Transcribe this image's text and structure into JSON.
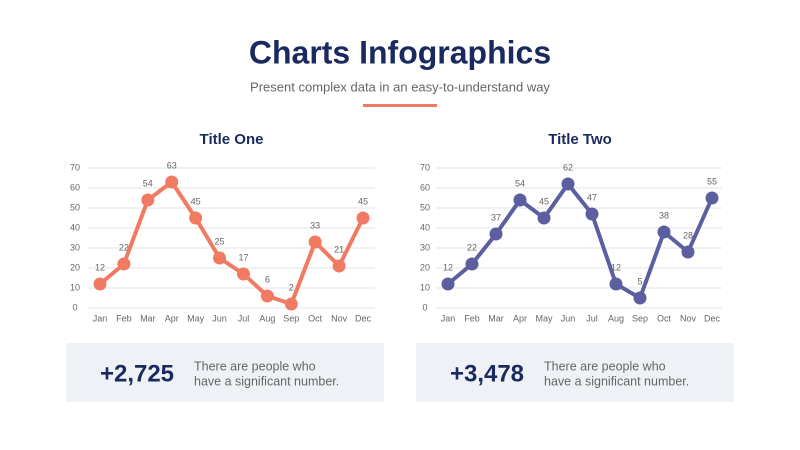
{
  "header": {
    "title": "Charts Infographics",
    "subtitle": "Present complex data in an easy-to-understand way"
  },
  "chart_data": [
    {
      "type": "line",
      "title": "Title One",
      "categories": [
        "Jan",
        "Feb",
        "Mar",
        "Apr",
        "May",
        "Jun",
        "Jul",
        "Aug",
        "Sep",
        "Oct",
        "Nov",
        "Dec"
      ],
      "values": [
        12,
        22,
        54,
        63,
        45,
        25,
        17,
        6,
        2,
        33,
        21,
        45
      ],
      "color": "#f07b62",
      "ylim": [
        0,
        70
      ],
      "yticks": [
        0,
        10,
        20,
        30,
        40,
        50,
        60,
        70
      ],
      "grid": true
    },
    {
      "type": "line",
      "title": "Title Two",
      "categories": [
        "Jan",
        "Feb",
        "Mar",
        "Apr",
        "May",
        "Jun",
        "Jul",
        "Aug",
        "Sep",
        "Oct",
        "Nov",
        "Dec"
      ],
      "values": [
        12,
        22,
        37,
        54,
        45,
        62,
        47,
        12,
        5,
        38,
        28,
        55
      ],
      "color": "#5b5fa0",
      "ylim": [
        0,
        70
      ],
      "yticks": [
        0,
        10,
        20,
        30,
        40,
        50,
        60,
        70
      ],
      "grid": true
    }
  ],
  "stats": [
    {
      "value": "+2,725",
      "text": [
        "There are people who",
        "have a significant number."
      ]
    },
    {
      "value": "+3,478",
      "text": [
        "There are people who",
        "have a significant number."
      ]
    }
  ]
}
